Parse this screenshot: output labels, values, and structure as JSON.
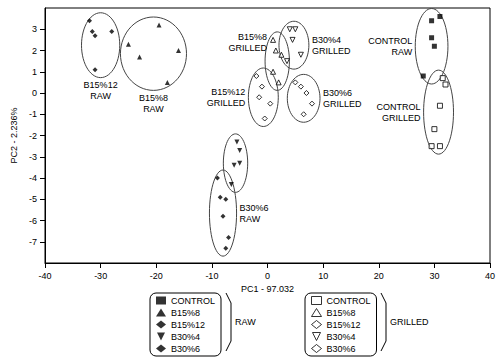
{
  "chart_data": {
    "type": "scatter",
    "xlabel": "PC1 - 97.032",
    "ylabel": "PC2 - 2.236%",
    "xlim": [
      -40,
      40
    ],
    "xticks": [
      -40,
      -30,
      -20,
      -10,
      0,
      10,
      20,
      30,
      40
    ],
    "ylim": [
      -8,
      4
    ],
    "yticks": [
      -7,
      -6,
      -5,
      -4,
      -3,
      -2,
      -1,
      0,
      1,
      2,
      3
    ],
    "grid": false,
    "legend": "bottom",
    "legend_groups": [
      "RAW",
      "GRILLED"
    ],
    "series": [
      {
        "name": "CONTROL",
        "group": "RAW",
        "annotation": "CONTROL\nRAW",
        "color": "#000000",
        "marker": "square",
        "x": [
          29.5,
          31,
          29.5,
          30,
          28
        ],
        "y": [
          3.4,
          3.6,
          2.6,
          2.2,
          0.8
        ]
      },
      {
        "name": "B15%8",
        "group": "RAW",
        "annotation": "B15%8\nRAW",
        "color": "#000000",
        "marker": "triangle",
        "x": [
          -25,
          -23,
          -19.5,
          -16,
          -18
        ],
        "y": [
          2.3,
          1.7,
          3.2,
          2.0,
          0.5
        ]
      },
      {
        "name": "B15%12",
        "group": "RAW",
        "annotation": "B15%12\nRAW",
        "color": "#000000",
        "marker": "diamond",
        "x": [
          -32,
          -31.5,
          -31,
          -28,
          -31
        ],
        "y": [
          3.4,
          2.9,
          2.7,
          2.9,
          1.1
        ]
      },
      {
        "name": "B30%4",
        "group": "RAW",
        "color": "#000000",
        "marker": "triangle-down",
        "x": [
          -5.5,
          -5,
          -5,
          -6,
          -6.5
        ],
        "y": [
          -2.3,
          -2.7,
          -3.3,
          -3.4,
          -4.3
        ]
      },
      {
        "name": "B30%6",
        "group": "RAW",
        "annotation": "B30%6\nRAW",
        "color": "#000000",
        "marker": "diamond",
        "x": [
          -9,
          -8.5,
          -7.5,
          -8,
          -7,
          -7.5
        ],
        "y": [
          -4.0,
          -4.9,
          -5.0,
          -5.8,
          -6.8,
          -7.3
        ]
      },
      {
        "name": "CONTROL",
        "group": "GRILLED",
        "annotation": "CONTROL\nGRILLED",
        "color": "#000000",
        "marker": "square-open",
        "x": [
          31.5,
          32,
          31,
          30,
          29.5,
          31
        ],
        "y": [
          0.7,
          0.4,
          -0.6,
          -1.7,
          -2.5,
          -2.5
        ]
      },
      {
        "name": "B15%8",
        "group": "GRILLED",
        "annotation": "B15%8\nGRILLED",
        "color": "#000000",
        "marker": "triangle-open",
        "x": [
          1,
          1.5,
          2.5,
          1,
          2
        ],
        "y": [
          2.5,
          2.0,
          1.8,
          1.0,
          0.5
        ]
      },
      {
        "name": "B15%12",
        "group": "GRILLED",
        "annotation": "B15%12\nGRILLED",
        "color": "#000000",
        "marker": "diamond-open",
        "x": [
          -2,
          -1.5,
          -1,
          0.5,
          -0.5
        ],
        "y": [
          0.8,
          -0.2,
          0.3,
          -0.5,
          -1.2
        ]
      },
      {
        "name": "B30%4",
        "group": "GRILLED",
        "annotation": "B30%4\nGRILLED",
        "color": "#000000",
        "marker": "triangle-down-open",
        "x": [
          4,
          5,
          4.5,
          6,
          3.5
        ],
        "y": [
          3.0,
          3.0,
          2.5,
          1.8,
          1.5
        ]
      },
      {
        "name": "B30%6",
        "group": "GRILLED",
        "annotation": "B30%6\nGRILLED",
        "color": "#000000",
        "marker": "diamond-open",
        "x": [
          5,
          6,
          7,
          8,
          6.5
        ],
        "y": [
          0.5,
          0.3,
          0.0,
          -0.5,
          -1.0
        ]
      }
    ]
  }
}
